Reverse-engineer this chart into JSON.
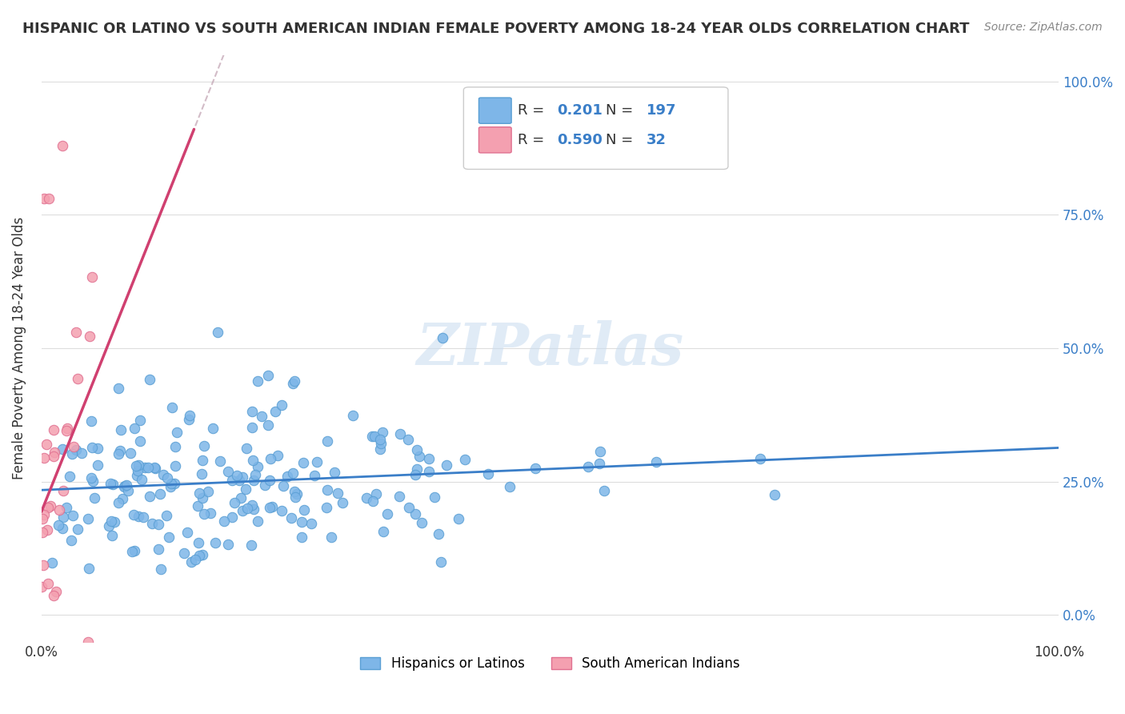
{
  "title": "HISPANIC OR LATINO VS SOUTH AMERICAN INDIAN FEMALE POVERTY AMONG 18-24 YEAR OLDS CORRELATION CHART",
  "source": "Source: ZipAtlas.com",
  "xlabel": "",
  "ylabel": "Female Poverty Among 18-24 Year Olds",
  "xlim": [
    0,
    1
  ],
  "ylim": [
    -0.05,
    1.05
  ],
  "x_tick_labels": [
    "0.0%",
    "100.0%"
  ],
  "y_tick_labels_right": [
    "0.0%",
    "25.0%",
    "50.0%",
    "75.0%",
    "100.0%"
  ],
  "series1_color": "#7EB6E8",
  "series1_edge": "#5A9FD4",
  "series2_color": "#F4A0B0",
  "series2_edge": "#E07090",
  "trendline1_color": "#3A7EC8",
  "trendline2_color": "#D04070",
  "trendline2_dashed_color": "#C0A0B0",
  "legend_label1": "Hispanics or Latinos",
  "legend_label2": "South American Indians",
  "R1": 0.201,
  "N1": 197,
  "R2": 0.59,
  "N2": 32,
  "watermark": "ZIPatlas",
  "background_color": "#FFFFFF",
  "grid_color": "#DDDDDD",
  "seed": 42
}
